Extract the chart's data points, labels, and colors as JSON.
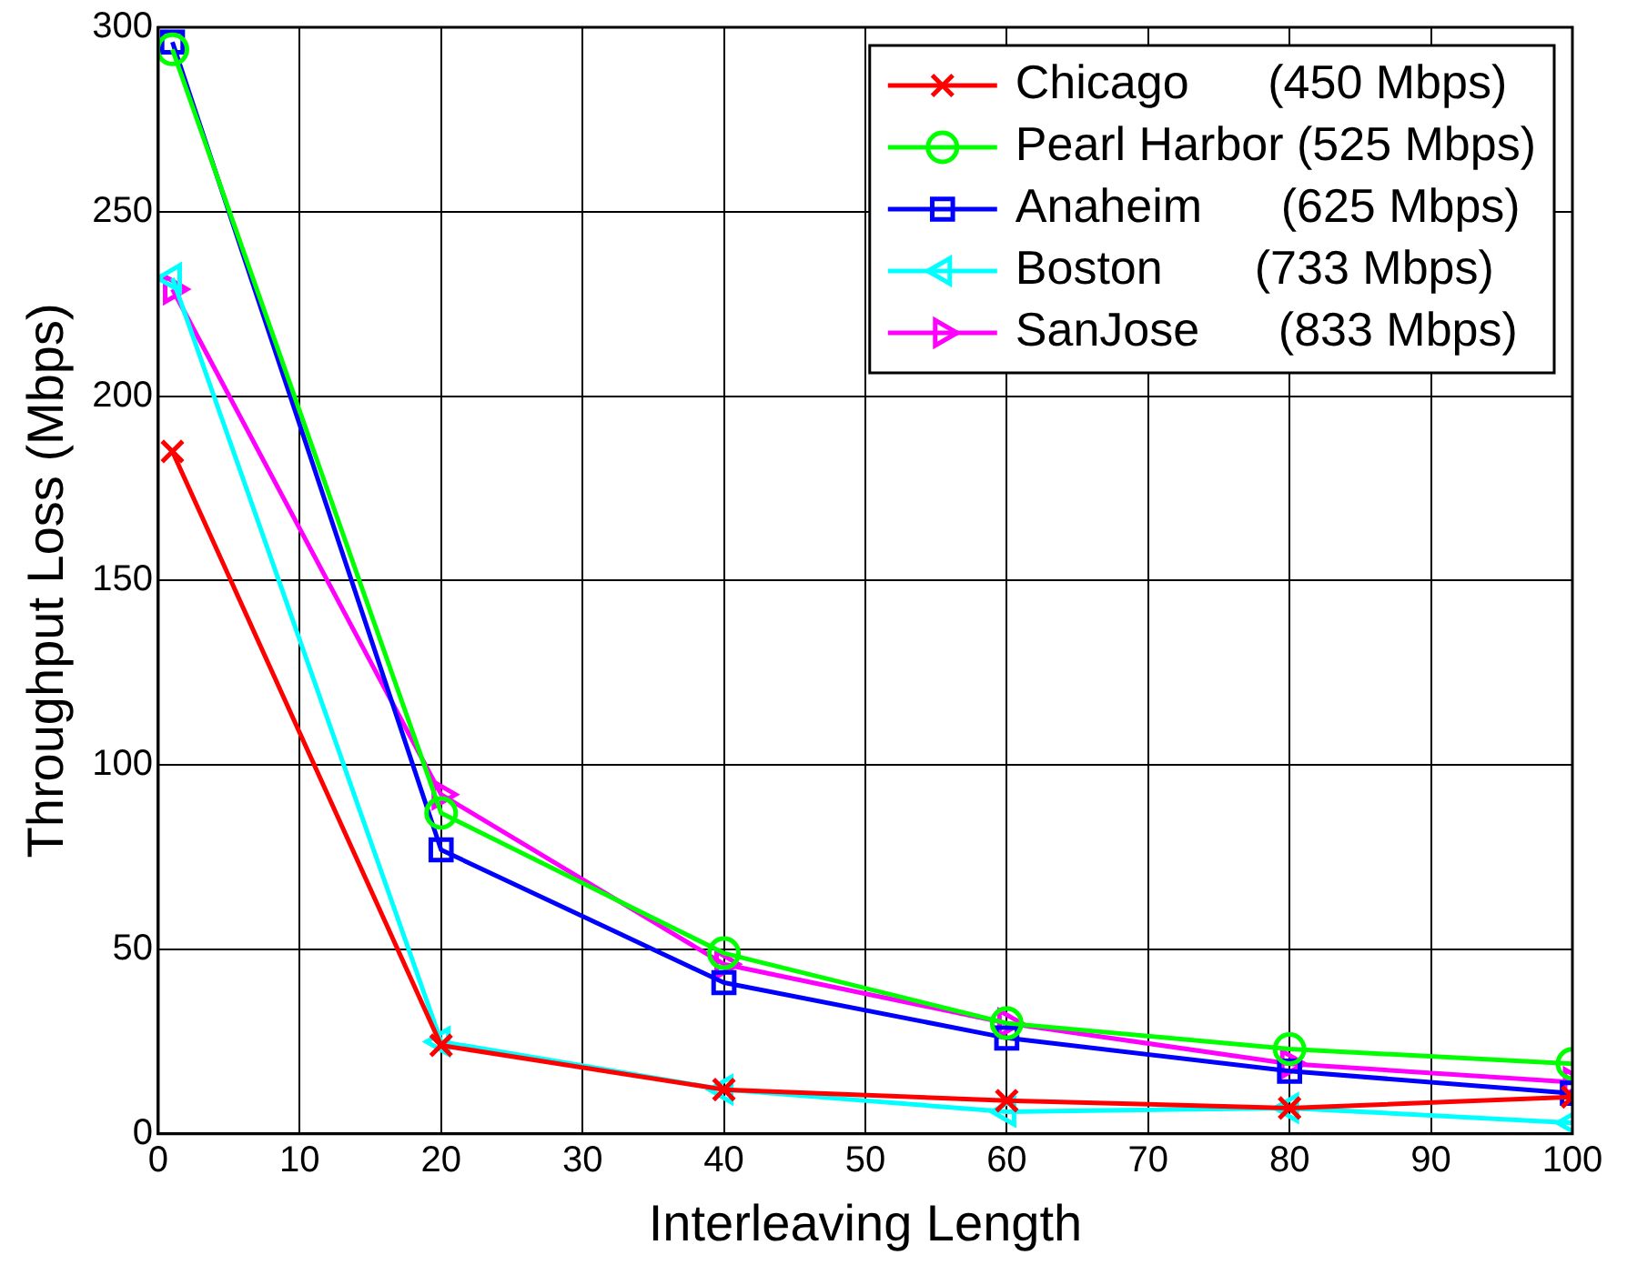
{
  "chart_data": {
    "type": "line",
    "xlabel": "Interleaving Length",
    "ylabel": "Throughput Loss (Mbps)",
    "x": [
      1,
      20,
      40,
      60,
      80,
      100
    ],
    "xlim": [
      0,
      100
    ],
    "xticks": [
      0,
      10,
      20,
      30,
      40,
      50,
      60,
      70,
      80,
      90,
      100
    ],
    "ylim": [
      0,
      300
    ],
    "yticks": [
      0,
      50,
      100,
      150,
      200,
      250,
      300
    ],
    "grid": true,
    "legend": "top right",
    "line_style": "solid",
    "series": [
      {
        "name": "Chicago      (450 Mbps)",
        "color": "#ff0000",
        "marker": "cross",
        "values": [
          185,
          24,
          12,
          9,
          7,
          10
        ]
      },
      {
        "name": "Pearl Harbor (525 Mbps)",
        "color": "#00ff00",
        "marker": "circle",
        "values": [
          294,
          87,
          49,
          30,
          23,
          19
        ]
      },
      {
        "name": "Anaheim      (625 Mbps)",
        "color": "#0000ff",
        "marker": "square",
        "values": [
          296,
          77,
          41,
          26,
          17,
          11
        ]
      },
      {
        "name": "Boston       (733 Mbps)",
        "color": "#00ffff",
        "marker": "triangle-left",
        "values": [
          232,
          25,
          12,
          6,
          7,
          3
        ]
      },
      {
        "name": "SanJose      (833 Mbps)",
        "color": "#ff00ff",
        "marker": "triangle-right",
        "values": [
          229,
          92,
          46,
          30,
          19,
          14
        ]
      }
    ]
  }
}
